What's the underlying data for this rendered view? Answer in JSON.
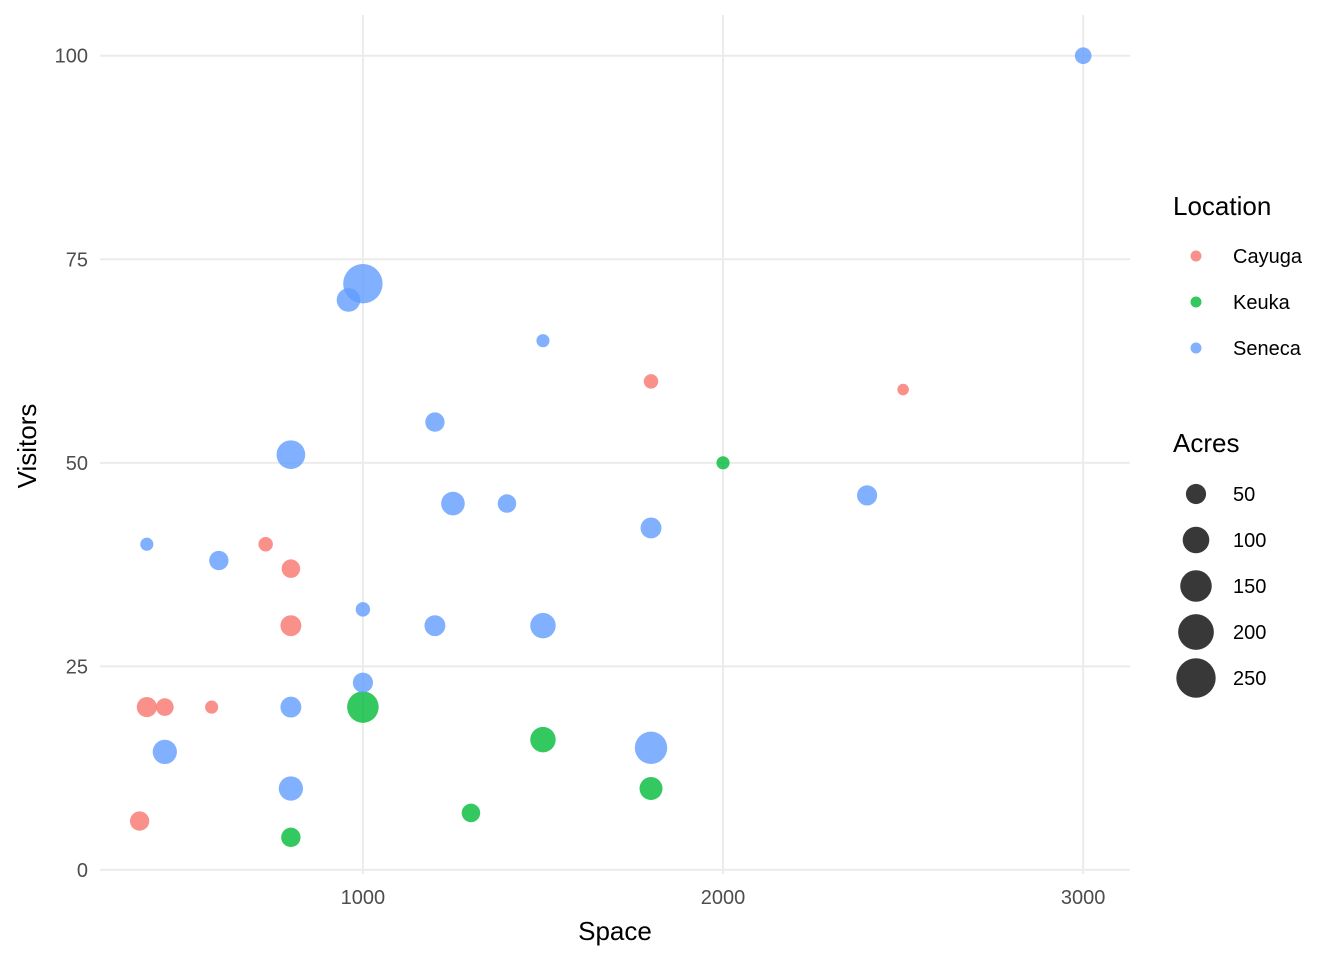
{
  "chart_data": {
    "type": "scatter",
    "title": "",
    "xlabel": "Space",
    "ylabel": "Visitors",
    "xlim": [
      270,
      3130
    ],
    "ylim": [
      -0.5,
      105
    ],
    "x_ticks": [
      1000,
      2000,
      3000
    ],
    "y_ticks": [
      0,
      25,
      50,
      75,
      100
    ],
    "grid": true,
    "colors": {
      "Cayuga": "#F8766D",
      "Keuka": "#00BA38",
      "Seneca": "#619CFF"
    },
    "color_legend": {
      "title": "Location",
      "entries": [
        "Cayuga",
        "Keuka",
        "Seneca"
      ],
      "placement": "right"
    },
    "size_legend": {
      "title": "Acres",
      "entries": [
        50,
        100,
        150,
        200,
        250
      ],
      "placement": "right"
    },
    "series": [
      {
        "name": "Cayuga",
        "points": [
          {
            "x": 1800,
            "y": 60,
            "size": 20
          },
          {
            "x": 2500,
            "y": 59,
            "size": 10
          },
          {
            "x": 730,
            "y": 40,
            "size": 20
          },
          {
            "x": 800,
            "y": 37,
            "size": 40
          },
          {
            "x": 800,
            "y": 30,
            "size": 55
          },
          {
            "x": 400,
            "y": 20,
            "size": 50
          },
          {
            "x": 450,
            "y": 20,
            "size": 35
          },
          {
            "x": 580,
            "y": 20,
            "size": 15
          },
          {
            "x": 380,
            "y": 6,
            "size": 45
          }
        ]
      },
      {
        "name": "Keuka",
        "points": [
          {
            "x": 2000,
            "y": 50,
            "size": 15
          },
          {
            "x": 1000,
            "y": 20,
            "size": 150
          },
          {
            "x": 1500,
            "y": 16,
            "size": 90
          },
          {
            "x": 1800,
            "y": 10,
            "size": 70
          },
          {
            "x": 1300,
            "y": 7,
            "size": 40
          },
          {
            "x": 800,
            "y": 4,
            "size": 45
          }
        ]
      },
      {
        "name": "Seneca",
        "points": [
          {
            "x": 3000,
            "y": 100,
            "size": 30
          },
          {
            "x": 1000,
            "y": 72,
            "size": 250
          },
          {
            "x": 960,
            "y": 70,
            "size": 75
          },
          {
            "x": 1500,
            "y": 65,
            "size": 15
          },
          {
            "x": 1200,
            "y": 55,
            "size": 45
          },
          {
            "x": 800,
            "y": 51,
            "size": 120
          },
          {
            "x": 2400,
            "y": 46,
            "size": 50
          },
          {
            "x": 1250,
            "y": 45,
            "size": 75
          },
          {
            "x": 1400,
            "y": 45,
            "size": 40
          },
          {
            "x": 1800,
            "y": 42,
            "size": 55
          },
          {
            "x": 400,
            "y": 40,
            "size": 15
          },
          {
            "x": 600,
            "y": 38,
            "size": 45
          },
          {
            "x": 1000,
            "y": 32,
            "size": 20
          },
          {
            "x": 1200,
            "y": 30,
            "size": 55
          },
          {
            "x": 1500,
            "y": 30,
            "size": 90
          },
          {
            "x": 1000,
            "y": 23,
            "size": 50
          },
          {
            "x": 800,
            "y": 20,
            "size": 55
          },
          {
            "x": 450,
            "y": 14.5,
            "size": 80
          },
          {
            "x": 1800,
            "y": 15,
            "size": 160
          },
          {
            "x": 800,
            "y": 10,
            "size": 80
          }
        ]
      }
    ]
  }
}
